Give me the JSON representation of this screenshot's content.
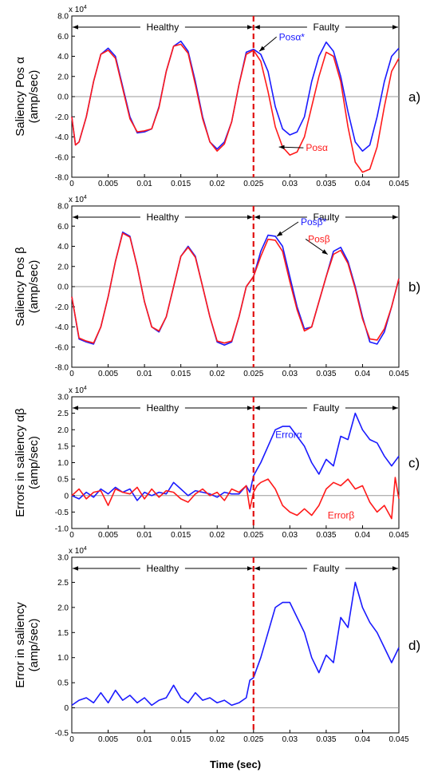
{
  "figure": {
    "xlabel": "Time (sec)",
    "colors": {
      "blue": "#1a1aff",
      "red": "#ff1a1a",
      "fault_line": "#e01010",
      "zero_line": "#999999"
    }
  },
  "chart_data": [
    {
      "id": "a",
      "type": "line",
      "panel_label": "a)",
      "ylabel": [
        "Saliency Pos α",
        "(amp/sec)"
      ],
      "exponent_label": "x 10",
      "exponent_power": "4",
      "xlim": [
        0,
        0.045
      ],
      "ylim": [
        -8,
        8
      ],
      "x_ticks": [
        "0",
        "0.005",
        "0.01",
        "0.015",
        "0.02",
        "0.025",
        "0.03",
        "0.035",
        "0.04",
        "0.045"
      ],
      "y_ticks": [
        "8.0",
        "6.0",
        "4.0",
        "2.0",
        "0.0",
        "-2.0",
        "-4.0",
        "-6.0",
        "-8.0"
      ],
      "regions": {
        "healthy": "Healthy",
        "faulty": "Faulty",
        "boundary": 0.025
      },
      "series": [
        {
          "name": "Posα*",
          "color": "#1a1aff",
          "x": [
            0,
            0.0005,
            0.001,
            0.002,
            0.003,
            0.004,
            0.005,
            0.006,
            0.007,
            0.008,
            0.009,
            0.01,
            0.011,
            0.012,
            0.013,
            0.014,
            0.015,
            0.016,
            0.017,
            0.018,
            0.019,
            0.02,
            0.021,
            0.022,
            0.023,
            0.024,
            0.025,
            0.026,
            0.027,
            0.028,
            0.029,
            0.03,
            0.031,
            0.032,
            0.033,
            0.034,
            0.035,
            0.036,
            0.037,
            0.038,
            0.039,
            0.04,
            0.041,
            0.042,
            0.043,
            0.044,
            0.045
          ],
          "y": [
            -2,
            -4.8,
            -4.5,
            -2,
            1.5,
            4.2,
            4.8,
            4,
            1,
            -2,
            -3.6,
            -3.5,
            -3.2,
            -1,
            2.5,
            5,
            5.5,
            4.5,
            1.5,
            -2,
            -4.5,
            -5.2,
            -4.5,
            -2.5,
            1.2,
            4.4,
            4.7,
            4.2,
            2.5,
            -1,
            -3.2,
            -3.8,
            -3.5,
            -2,
            1.5,
            4,
            5.4,
            4.5,
            2,
            -1.5,
            -4.5,
            -5.4,
            -4.8,
            -2,
            1.5,
            4,
            4.8
          ]
        },
        {
          "name": "Posα",
          "color": "#ff1a1a",
          "x": [
            0,
            0.0005,
            0.001,
            0.002,
            0.003,
            0.004,
            0.005,
            0.006,
            0.007,
            0.008,
            0.009,
            0.01,
            0.011,
            0.012,
            0.013,
            0.014,
            0.015,
            0.016,
            0.017,
            0.018,
            0.019,
            0.02,
            0.021,
            0.022,
            0.023,
            0.024,
            0.025,
            0.026,
            0.027,
            0.028,
            0.029,
            0.03,
            0.031,
            0.032,
            0.033,
            0.034,
            0.035,
            0.036,
            0.037,
            0.038,
            0.039,
            0.04,
            0.041,
            0.042,
            0.043,
            0.044,
            0.045
          ],
          "y": [
            -2,
            -4.8,
            -4.5,
            -2,
            1.5,
            4.2,
            4.6,
            3.8,
            0.8,
            -2.2,
            -3.5,
            -3.4,
            -3.2,
            -1.1,
            2.5,
            5,
            5.2,
            4.3,
            1.2,
            -2.2,
            -4.5,
            -5.4,
            -4.7,
            -2.5,
            1.2,
            4.2,
            4.6,
            3.5,
            0.5,
            -3,
            -5,
            -5.8,
            -5.5,
            -4,
            -1,
            2,
            4.4,
            4,
            1.5,
            -3,
            -6.5,
            -7.5,
            -7.2,
            -5,
            -1,
            2.5,
            3.8
          ]
        }
      ],
      "annotations": [
        {
          "text": "Posα*",
          "series": 0,
          "anchor_x": 0.0258,
          "anchor_y": 4.5,
          "label_x": 0.0285,
          "label_y": 5.6
        },
        {
          "text": "Posα",
          "series": 1,
          "anchor_x": 0.0285,
          "anchor_y": -5.0,
          "label_x": 0.0322,
          "label_y": -5.4
        }
      ]
    },
    {
      "id": "b",
      "type": "line",
      "panel_label": "b)",
      "ylabel": [
        "Saliency Pos β",
        "(amp/sec)"
      ],
      "exponent_label": "x 10",
      "exponent_power": "4",
      "xlim": [
        0,
        0.045
      ],
      "ylim": [
        -8,
        8
      ],
      "x_ticks": [
        "0",
        "0.005",
        "0.01",
        "0.015",
        "0.02",
        "0.025",
        "0.03",
        "0.035",
        "0.04",
        "0.045"
      ],
      "y_ticks": [
        "8.0",
        "6.0",
        "4.0",
        "2.0",
        "0.0",
        "-2.0",
        "-4.0",
        "-6.0",
        "-8.0"
      ],
      "regions": {
        "healthy": "Healthy",
        "faulty": "Faulty",
        "boundary": 0.025
      },
      "series": [
        {
          "name": "Posβ*",
          "color": "#1a1aff",
          "x": [
            0,
            0.001,
            0.002,
            0.003,
            0.004,
            0.005,
            0.006,
            0.007,
            0.008,
            0.009,
            0.01,
            0.011,
            0.012,
            0.013,
            0.014,
            0.015,
            0.016,
            0.017,
            0.018,
            0.019,
            0.02,
            0.021,
            0.022,
            0.023,
            0.024,
            0.025,
            0.026,
            0.027,
            0.028,
            0.029,
            0.03,
            0.031,
            0.032,
            0.033,
            0.034,
            0.035,
            0.036,
            0.037,
            0.038,
            0.039,
            0.04,
            0.041,
            0.042,
            0.043,
            0.044,
            0.045
          ],
          "y": [
            -1,
            -5.2,
            -5.5,
            -5.7,
            -4,
            -1,
            2.5,
            5.4,
            5,
            2,
            -1.5,
            -4,
            -4.5,
            -3,
            0,
            3,
            4,
            3,
            0,
            -3,
            -5.5,
            -5.8,
            -5.5,
            -3,
            0,
            1,
            3.5,
            5.1,
            5,
            4,
            1,
            -2,
            -4.2,
            -4,
            -1.5,
            1,
            3.5,
            3.9,
            2.5,
            0,
            -3,
            -5.5,
            -5.7,
            -4.5,
            -2,
            0.8
          ]
        },
        {
          "name": "Posβ",
          "color": "#ff1a1a",
          "x": [
            0,
            0.001,
            0.002,
            0.003,
            0.004,
            0.005,
            0.006,
            0.007,
            0.008,
            0.009,
            0.01,
            0.011,
            0.012,
            0.013,
            0.014,
            0.015,
            0.016,
            0.017,
            0.018,
            0.019,
            0.02,
            0.021,
            0.022,
            0.023,
            0.024,
            0.025,
            0.026,
            0.027,
            0.028,
            0.029,
            0.03,
            0.031,
            0.032,
            0.033,
            0.034,
            0.035,
            0.036,
            0.037,
            0.038,
            0.039,
            0.04,
            0.041,
            0.042,
            0.043,
            0.044,
            0.045
          ],
          "y": [
            -1,
            -5.1,
            -5.4,
            -5.6,
            -4,
            -1,
            2.5,
            5.3,
            4.9,
            2,
            -1.5,
            -4,
            -4.4,
            -3,
            0,
            3,
            3.9,
            2.9,
            0,
            -3,
            -5.4,
            -5.6,
            -5.4,
            -3,
            0,
            1,
            3,
            4.7,
            4.6,
            3.5,
            0.5,
            -2.3,
            -4.4,
            -4,
            -1.5,
            1,
            3.2,
            3.6,
            2.3,
            -0.2,
            -3.2,
            -5.2,
            -5.3,
            -4.2,
            -2,
            0.8
          ]
        }
      ],
      "annotations": [
        {
          "text": "Posβ*",
          "series": 0,
          "anchor_x": 0.0282,
          "anchor_y": 5.0,
          "label_x": 0.0315,
          "label_y": 6.1
        },
        {
          "text": "Posβ",
          "series": 1,
          "anchor_x": 0.0352,
          "anchor_y": 3.2,
          "label_x": 0.0325,
          "label_y": 4.4
        }
      ]
    },
    {
      "id": "c",
      "type": "line",
      "panel_label": "c)",
      "ylabel": [
        "Errors in saliency αβ",
        "(amp/sec)"
      ],
      "exponent_label": "x 10",
      "exponent_power": "4",
      "xlim": [
        0,
        0.045
      ],
      "ylim": [
        -1,
        3
      ],
      "x_ticks": [
        "0",
        "0.005",
        "0.01",
        "0.015",
        "0.02",
        "0.025",
        "0.03",
        "0.035",
        "0.04",
        "0.045"
      ],
      "y_ticks": [
        "3.0",
        "2.5",
        "2.0",
        "1.5",
        "1.0",
        "0.5",
        "0",
        "-0.5",
        "-1.0"
      ],
      "regions": {
        "healthy": "Healthy",
        "faulty": "Faulty",
        "boundary": 0.025
      },
      "series": [
        {
          "name": "Errorα",
          "color": "#1a1aff",
          "x": [
            0,
            0.001,
            0.002,
            0.003,
            0.004,
            0.005,
            0.006,
            0.007,
            0.008,
            0.009,
            0.01,
            0.011,
            0.012,
            0.013,
            0.014,
            0.015,
            0.016,
            0.017,
            0.018,
            0.019,
            0.02,
            0.021,
            0.022,
            0.023,
            0.024,
            0.0245,
            0.025,
            0.0255,
            0.026,
            0.027,
            0.028,
            0.029,
            0.03,
            0.031,
            0.032,
            0.033,
            0.034,
            0.035,
            0.036,
            0.037,
            0.038,
            0.039,
            0.04,
            0.041,
            0.042,
            0.043,
            0.044,
            0.045
          ],
          "y": [
            0,
            -0.1,
            0.1,
            -0.05,
            0.2,
            0.05,
            0.25,
            0.1,
            0.2,
            -0.15,
            0.1,
            0,
            0.1,
            0.05,
            0.4,
            0.2,
            0,
            0.15,
            0.1,
            0.05,
            -0.05,
            0.1,
            0.05,
            0.05,
            0.3,
            0.1,
            0.6,
            0.8,
            1.0,
            1.5,
            2.0,
            2.1,
            2.1,
            1.8,
            1.5,
            1.0,
            0.65,
            1.1,
            0.9,
            1.8,
            1.7,
            2.5,
            2.0,
            1.7,
            1.6,
            1.2,
            0.9,
            1.2
          ]
        },
        {
          "name": "Errorβ",
          "color": "#ff1a1a",
          "x": [
            0,
            0.001,
            0.002,
            0.003,
            0.004,
            0.005,
            0.006,
            0.007,
            0.008,
            0.009,
            0.01,
            0.011,
            0.012,
            0.013,
            0.014,
            0.015,
            0.016,
            0.017,
            0.018,
            0.019,
            0.02,
            0.021,
            0.022,
            0.023,
            0.024,
            0.0245,
            0.025,
            0.0255,
            0.026,
            0.027,
            0.028,
            0.029,
            0.03,
            0.031,
            0.032,
            0.033,
            0.034,
            0.035,
            0.036,
            0.037,
            0.038,
            0.039,
            0.04,
            0.041,
            0.042,
            0.043,
            0.044,
            0.0445,
            0.045
          ],
          "y": [
            0,
            0.2,
            -0.1,
            0.1,
            0.15,
            -0.3,
            0.2,
            0.1,
            0.05,
            0.25,
            -0.1,
            0.2,
            -0.05,
            0.15,
            0.1,
            -0.1,
            -0.2,
            0.05,
            0.2,
            0,
            0.1,
            -0.15,
            0.2,
            0.1,
            0.3,
            -0.4,
            0.1,
            0.3,
            0.4,
            0.5,
            0.2,
            -0.3,
            -0.5,
            -0.6,
            -0.4,
            -0.6,
            -0.3,
            0.2,
            0.4,
            0.3,
            0.5,
            0.2,
            0.3,
            -0.2,
            -0.5,
            -0.3,
            -0.7,
            0.55,
            -0.1
          ]
        }
      ],
      "annotations": [
        {
          "text": "Errorα",
          "series": 0,
          "label_x": 0.028,
          "label_y": 1.75
        },
        {
          "text": "Errorβ",
          "series": 1,
          "label_x": 0.0352,
          "label_y": -0.7
        }
      ]
    },
    {
      "id": "d",
      "type": "line",
      "panel_label": "d)",
      "ylabel": [
        "Error in saliency",
        "(amp/sec)"
      ],
      "exponent_label": "x 10",
      "exponent_power": "4",
      "xlim": [
        0,
        0.045
      ],
      "ylim": [
        -0.5,
        3
      ],
      "x_ticks": [
        "0",
        "0.005",
        "0.01",
        "0.015",
        "0.02",
        "0.025",
        "0.03",
        "0.035",
        "0.04",
        "0.045"
      ],
      "y_ticks": [
        "3.0",
        "2.5",
        "2.0",
        "1.5",
        "1.0",
        "0.5",
        "0",
        "-0.5"
      ],
      "regions": {
        "healthy": "Healthy",
        "faulty": "Faulty",
        "boundary": 0.025
      },
      "series": [
        {
          "color": "#1a1aff",
          "x": [
            0,
            0.001,
            0.002,
            0.003,
            0.004,
            0.005,
            0.006,
            0.007,
            0.008,
            0.009,
            0.01,
            0.011,
            0.012,
            0.013,
            0.014,
            0.015,
            0.016,
            0.017,
            0.018,
            0.019,
            0.02,
            0.021,
            0.022,
            0.023,
            0.024,
            0.0245,
            0.025,
            0.0255,
            0.026,
            0.027,
            0.028,
            0.029,
            0.03,
            0.031,
            0.032,
            0.033,
            0.034,
            0.035,
            0.036,
            0.037,
            0.038,
            0.039,
            0.04,
            0.041,
            0.042,
            0.043,
            0.044,
            0.045
          ],
          "y": [
            0.05,
            0.15,
            0.2,
            0.1,
            0.3,
            0.1,
            0.35,
            0.15,
            0.25,
            0.1,
            0.2,
            0.05,
            0.15,
            0.2,
            0.45,
            0.2,
            0.1,
            0.3,
            0.15,
            0.2,
            0.1,
            0.15,
            0.05,
            0.1,
            0.2,
            0.55,
            0.6,
            0.8,
            1.0,
            1.5,
            2.0,
            2.1,
            2.1,
            1.8,
            1.5,
            1.0,
            0.7,
            1.05,
            0.9,
            1.8,
            1.6,
            2.5,
            2.0,
            1.7,
            1.5,
            1.2,
            0.9,
            1.2
          ]
        }
      ]
    }
  ]
}
